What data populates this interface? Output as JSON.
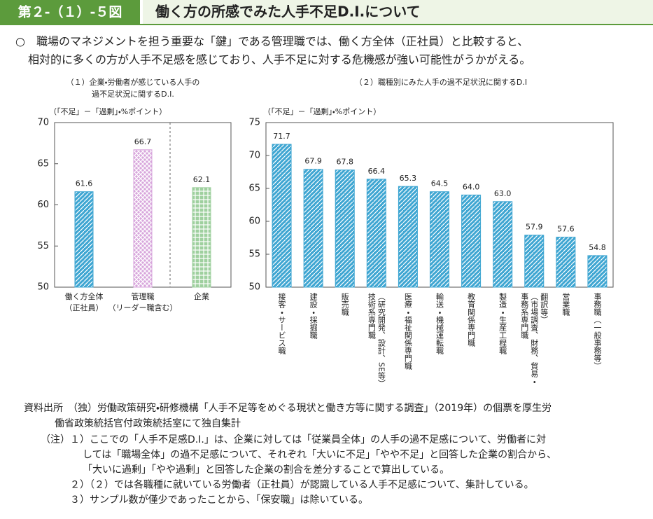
{
  "header": {
    "figure_no": "第２-（１）-５図",
    "title": "働く方の所感でみた人手不足D.I.について"
  },
  "lead": [
    "○　職場のマネジメントを担う重要な「鍵」である管理職では、働く方全体（正社員）と比較すると、",
    "相対的に多くの方が人手不足感を感じており、人手不足に対する危機感が強い可能性がうかがえる。"
  ],
  "chart_data": [
    {
      "type": "bar",
      "title": [
        "（１）企業・労働者が感じている人手の",
        "過不足状況に関するD.I."
      ],
      "y_label": "（「不足」－「過剰」・%ポイント）",
      "categories": [
        [
          "働く方全体",
          "（正社員）"
        ],
        [
          "管理職",
          "（リーダー職含む）"
        ],
        [
          "企業"
        ]
      ],
      "values": [
        61.6,
        66.7,
        62.1
      ],
      "colors": [
        "#3fa6d2",
        "#d8a6dc",
        "#9fd09f"
      ],
      "ylim": [
        50,
        70
      ],
      "yticks": [
        50,
        55,
        60,
        65,
        70
      ]
    },
    {
      "type": "bar",
      "title": [
        "（２）職種別にみた人手の過不足状況に関するD.I"
      ],
      "y_label": "（「不足」－「過剰」・%ポイント）",
      "categories": [
        [
          "接客・サービス職"
        ],
        [
          "建設・採掘職"
        ],
        [
          "販売職"
        ],
        [
          "技術系専門職",
          "（研究開発、設計、SE等）"
        ],
        [
          "医療・福祉関係専門職"
        ],
        [
          "輸送・機械運転職"
        ],
        [
          "教育関係専門職"
        ],
        [
          "製造・生産工程職"
        ],
        [
          "事務系専門職",
          "（市場調査、財務、貿易・",
          "翻訳等）"
        ],
        [
          "営業職"
        ],
        [
          "事務職（一般事務等）"
        ]
      ],
      "values": [
        71.7,
        67.9,
        67.8,
        66.4,
        65.3,
        64.5,
        64.0,
        63.0,
        57.9,
        57.6,
        54.8
      ],
      "value_labels": [
        "71.7",
        "67.9",
        "67.8",
        "66.4",
        "65.3",
        "64.5",
        "64.0",
        "63.0",
        "57.9",
        "57.6",
        "54.8"
      ],
      "color": "#3fa6d2",
      "ylim": [
        50,
        75
      ],
      "yticks": [
        50,
        55,
        60,
        65,
        70,
        75
      ]
    }
  ],
  "source": [
    "資料出所　（独）労働政策研究・研修機構「人手不足等をめぐる現状と働き方等に関する調査」（2019年）の個票を厚生労",
    "働省政策統括官付政策統括室にて独自集計"
  ],
  "notes": {
    "label": "（注）",
    "items": [
      [
        "１）ここでの「人手不足感D.I.」は、企業に対しては「従業員全体」の人手の過不足感について、労働者に対",
        "しては「職場全体」の過不足感について、それぞれ「大いに不足」「やや不足」と回答した企業の割合から、",
        "「大いに過剰」「やや過剰」と回答した企業の割合を差分することで算出している。"
      ],
      [
        "２）（２）では各職種に就いている労働者（正社員）が認識している人手不足感について、集計している。"
      ],
      [
        "３）サンプル数が僅少であったことから、「保安職」は除いている。"
      ]
    ]
  }
}
